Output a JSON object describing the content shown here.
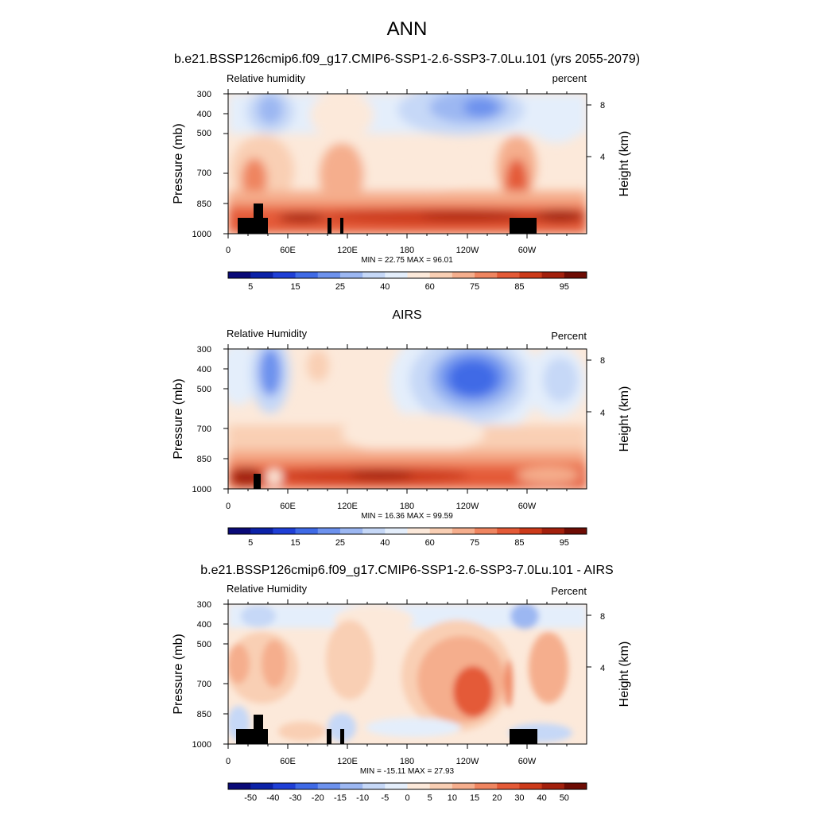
{
  "figure_title": "ANN",
  "chart_data": [
    {
      "type": "heatmap",
      "title": "b.e21.BSSP126cmip6.f09_g17.CMIP6-SSP1-2.6-SSP3-7.0Lu.101 (yrs 2055-2079)",
      "left_label": "Relative humidity",
      "right_label": "percent",
      "ylabel": "Pressure (mb)",
      "y2label": "Height (km)",
      "x_ticks": [
        "0",
        "60E",
        "120E",
        "180",
        "120W",
        "60W"
      ],
      "y_ticks": [
        "300",
        "400",
        "500",
        "700",
        "850",
        "1000"
      ],
      "y2_ticks": [
        "8",
        "4"
      ],
      "stats": "MIN =  22.75  MAX =  96.01",
      "colorbar_labels": [
        "5",
        "15",
        "25",
        "40",
        "60",
        "75",
        "85",
        "95"
      ],
      "colorbar_colors": [
        "#0a0a78",
        "#0c22a8",
        "#1f3fd6",
        "#3f6ae6",
        "#6d92ee",
        "#9cb7f2",
        "#c6d8f7",
        "#e4eefb",
        "#fce9da",
        "#f9cfb4",
        "#f5ae8d",
        "#ef8560",
        "#e45a37",
        "#cc3a1a",
        "#a3200d",
        "#6e0c04"
      ],
      "min": 22.75,
      "max": 96.01
    },
    {
      "type": "heatmap",
      "title": "AIRS",
      "left_label": "Relative Humidity",
      "right_label": "Percent",
      "ylabel": "Pressure (mb)",
      "y2label": "Height (km)",
      "x_ticks": [
        "0",
        "60E",
        "120E",
        "180",
        "120W",
        "60W"
      ],
      "y_ticks": [
        "300",
        "400",
        "500",
        "700",
        "850",
        "1000"
      ],
      "y2_ticks": [
        "8",
        "4"
      ],
      "stats": "MIN =  16.36  MAX =  99.59",
      "colorbar_labels": [
        "5",
        "15",
        "25",
        "40",
        "60",
        "75",
        "85",
        "95"
      ],
      "colorbar_colors": [
        "#0a0a78",
        "#0c22a8",
        "#1f3fd6",
        "#3f6ae6",
        "#6d92ee",
        "#9cb7f2",
        "#c6d8f7",
        "#e4eefb",
        "#fce9da",
        "#f9cfb4",
        "#f5ae8d",
        "#ef8560",
        "#e45a37",
        "#cc3a1a",
        "#a3200d",
        "#6e0c04"
      ],
      "min": 16.36,
      "max": 99.59
    },
    {
      "type": "heatmap",
      "title": "b.e21.BSSP126cmip6.f09_g17.CMIP6-SSP1-2.6-SSP3-7.0Lu.101 - AIRS",
      "left_label": "Relative Humidity",
      "right_label": "Percent",
      "ylabel": "Pressure (mb)",
      "y2label": "Height (km)",
      "x_ticks": [
        "0",
        "60E",
        "120E",
        "180",
        "120W",
        "60W"
      ],
      "y_ticks": [
        "300",
        "400",
        "500",
        "700",
        "850",
        "1000"
      ],
      "y2_ticks": [
        "8",
        "4"
      ],
      "stats": "MIN = -15.11  MAX =  27.93",
      "colorbar_labels": [
        "-50",
        "-40",
        "-30",
        "-20",
        "-15",
        "-10",
        "-5",
        "0",
        "5",
        "10",
        "15",
        "20",
        "30",
        "40",
        "50"
      ],
      "colorbar_colors": [
        "#0a0a78",
        "#0c22a8",
        "#1f3fd6",
        "#3f6ae6",
        "#6d92ee",
        "#9cb7f2",
        "#c6d8f7",
        "#e4eefb",
        "#fce9da",
        "#f9cfb4",
        "#f5ae8d",
        "#ef8560",
        "#e45a37",
        "#cc3a1a",
        "#a3200d",
        "#6e0c04"
      ],
      "min": -15.11,
      "max": 27.93
    }
  ]
}
